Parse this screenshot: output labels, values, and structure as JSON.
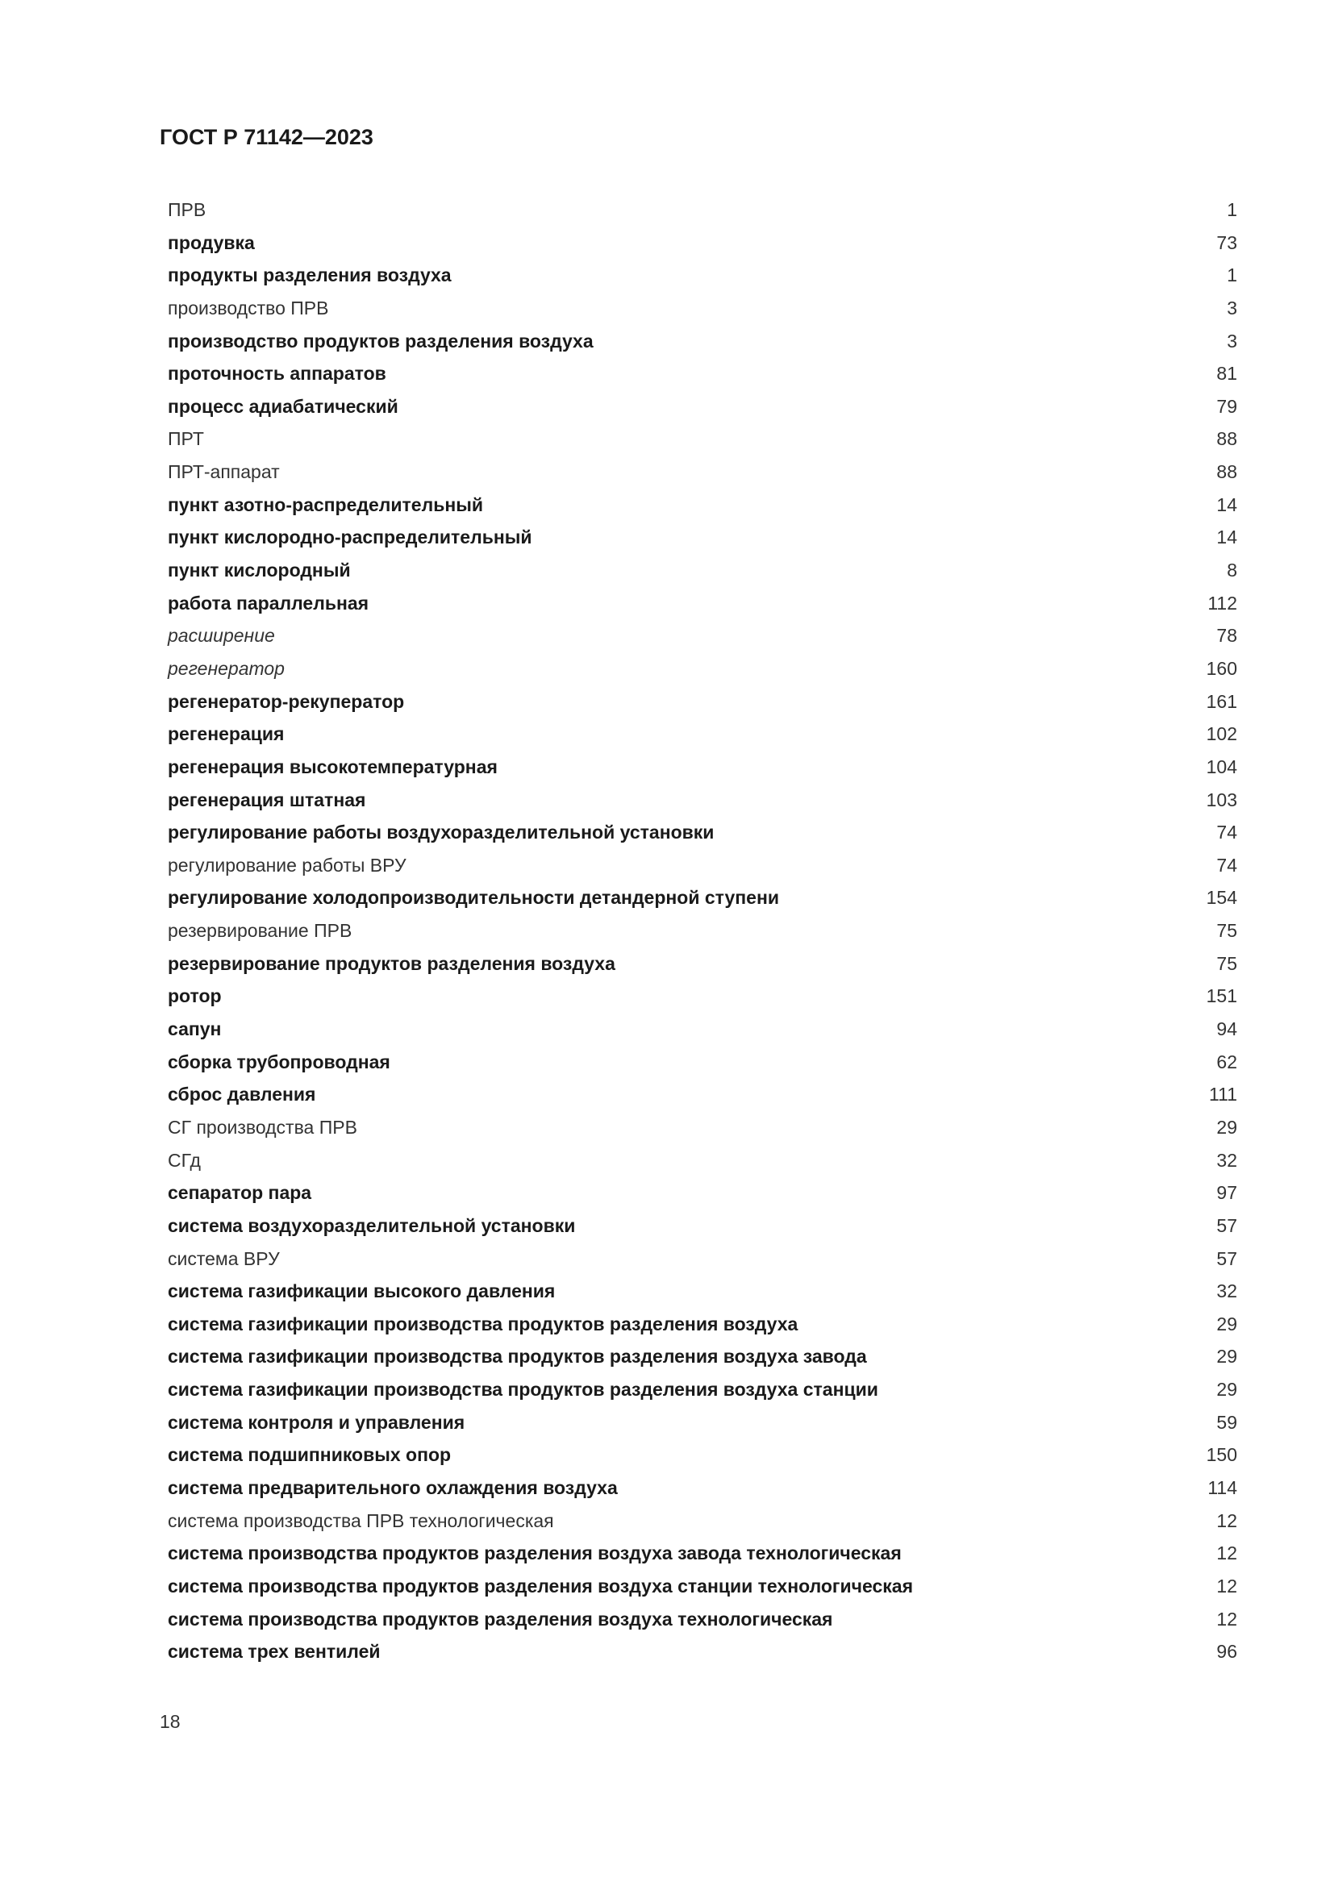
{
  "header": "ГОСТ Р 71142—2023",
  "page_number": "18",
  "entries": [
    {
      "term": "ПРВ",
      "page": "1",
      "style": "n"
    },
    {
      "term": "продувка",
      "page": "73",
      "style": "b"
    },
    {
      "term": "продукты разделения воздуха",
      "page": "1",
      "style": "b"
    },
    {
      "term": "производство ПРВ",
      "page": "3",
      "style": "n"
    },
    {
      "term": "производство продуктов разделения воздуха",
      "page": "3",
      "style": "b"
    },
    {
      "term": "проточность аппаратов",
      "page": "81",
      "style": "b"
    },
    {
      "term": "процесс адиабатический",
      "page": "79",
      "style": "b"
    },
    {
      "term": "ПРТ",
      "page": "88",
      "style": "n"
    },
    {
      "term": "ПРТ-аппарат",
      "page": "88",
      "style": "n"
    },
    {
      "term": "пункт азотно-распределительный",
      "page": "14",
      "style": "b"
    },
    {
      "term": "пункт кислородно-распределительный",
      "page": "14",
      "style": "b"
    },
    {
      "term": "пункт кислородный",
      "page": "8",
      "style": "b"
    },
    {
      "term": "работа параллельная",
      "page": "112",
      "style": "b"
    },
    {
      "term": "расширение",
      "page": "78",
      "style": "i"
    },
    {
      "term": "регенератор",
      "page": "160",
      "style": "i"
    },
    {
      "term": "регенератор-рекуператор",
      "page": "161",
      "style": "b"
    },
    {
      "term": "регенерация",
      "page": "102",
      "style": "b"
    },
    {
      "term": "регенерация высокотемпературная",
      "page": "104",
      "style": "b"
    },
    {
      "term": "регенерация штатная",
      "page": "103",
      "style": "b"
    },
    {
      "term": "регулирование работы воздухоразделительной установки",
      "page": "74",
      "style": "b"
    },
    {
      "term": "регулирование работы ВРУ",
      "page": "74",
      "style": "n"
    },
    {
      "term": "регулирование холодопроизводительности детандерной ступени",
      "page": "154",
      "style": "b"
    },
    {
      "term": "резервирование ПРВ",
      "page": "75",
      "style": "n"
    },
    {
      "term": "резервирование продуктов разделения воздуха",
      "page": "75",
      "style": "b"
    },
    {
      "term": "ротор",
      "page": "151",
      "style": "b"
    },
    {
      "term": "сапун",
      "page": "94",
      "style": "b"
    },
    {
      "term": "сборка трубопроводная",
      "page": "62",
      "style": "b"
    },
    {
      "term": "сброс давления",
      "page": "111",
      "style": "b"
    },
    {
      "term": "СГ производства ПРВ",
      "page": "29",
      "style": "n"
    },
    {
      "term": "СГд",
      "page": "32",
      "style": "n"
    },
    {
      "term": "сепаратор пара",
      "page": "97",
      "style": "b"
    },
    {
      "term": "система воздухоразделительной установки",
      "page": "57",
      "style": "b"
    },
    {
      "term": "система ВРУ",
      "page": "57",
      "style": "n"
    },
    {
      "term": "система газификации высокого давления",
      "page": "32",
      "style": "b"
    },
    {
      "term": "система газификации производства продуктов разделения воздуха",
      "page": "29",
      "style": "b"
    },
    {
      "term": "система газификации производства продуктов разделения воздуха завода",
      "page": "29",
      "style": "b"
    },
    {
      "term": "система газификации производства продуктов разделения воздуха станции",
      "page": "29",
      "style": "b"
    },
    {
      "term": "система контроля и управления",
      "page": "59",
      "style": "b"
    },
    {
      "term": "система подшипниковых опор",
      "page": "150",
      "style": "b"
    },
    {
      "term": "система предварительного охлаждения воздуха",
      "page": "114",
      "style": "b"
    },
    {
      "term": "система производства ПРВ технологическая",
      "page": "12",
      "style": "n"
    },
    {
      "term": "система производства продуктов разделения воздуха завода технологическая",
      "page": "12",
      "style": "b"
    },
    {
      "term": "система производства продуктов разделения воздуха станции технологическая",
      "page": "12",
      "style": "b"
    },
    {
      "term": "система производства продуктов разделения воздуха технологическая",
      "page": "12",
      "style": "b"
    },
    {
      "term": "система трех вентилей",
      "page": "96",
      "style": "b"
    }
  ]
}
